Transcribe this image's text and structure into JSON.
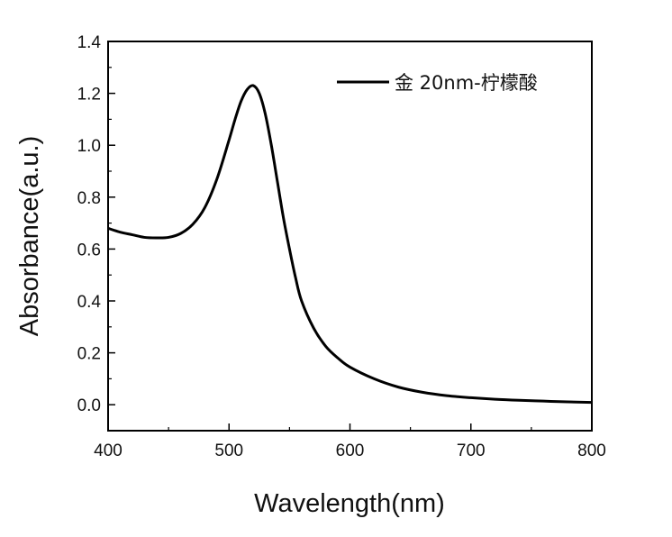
{
  "chart_data": {
    "type": "line",
    "title": "",
    "xlabel": "Wavelength(nm)",
    "ylabel": "Absorbance(a.u.)",
    "xlim": [
      400,
      800
    ],
    "ylim": [
      -0.1,
      1.4
    ],
    "xticks": [
      400,
      500,
      600,
      700,
      800
    ],
    "xtick_labels": [
      "400",
      "500",
      "600",
      "700",
      "800"
    ],
    "yticks": [
      0.0,
      0.2,
      0.4,
      0.6,
      0.8,
      1.0,
      1.2,
      1.4
    ],
    "ytick_labels": [
      "0.0",
      "0.2",
      "0.4",
      "0.6",
      "0.8",
      "1.0",
      "1.2",
      "1.4"
    ],
    "grid": false,
    "legend_position": "top-right",
    "series": [
      {
        "name": "金 20nm-柠檬酸",
        "color": "#000000",
        "x": [
          400,
          410,
          420,
          430,
          440,
          450,
          460,
          470,
          480,
          490,
          500,
          505,
          510,
          515,
          520,
          525,
          530,
          535,
          540,
          545,
          550,
          555,
          560,
          570,
          580,
          590,
          600,
          620,
          640,
          660,
          680,
          700,
          720,
          740,
          760,
          780,
          800
        ],
        "values": [
          0.68,
          0.665,
          0.655,
          0.645,
          0.643,
          0.645,
          0.66,
          0.695,
          0.76,
          0.87,
          1.02,
          1.1,
          1.17,
          1.215,
          1.23,
          1.2,
          1.12,
          1.0,
          0.86,
          0.72,
          0.6,
          0.49,
          0.4,
          0.295,
          0.225,
          0.18,
          0.145,
          0.1,
          0.068,
          0.048,
          0.035,
          0.027,
          0.021,
          0.017,
          0.014,
          0.011,
          0.009
        ]
      }
    ]
  }
}
